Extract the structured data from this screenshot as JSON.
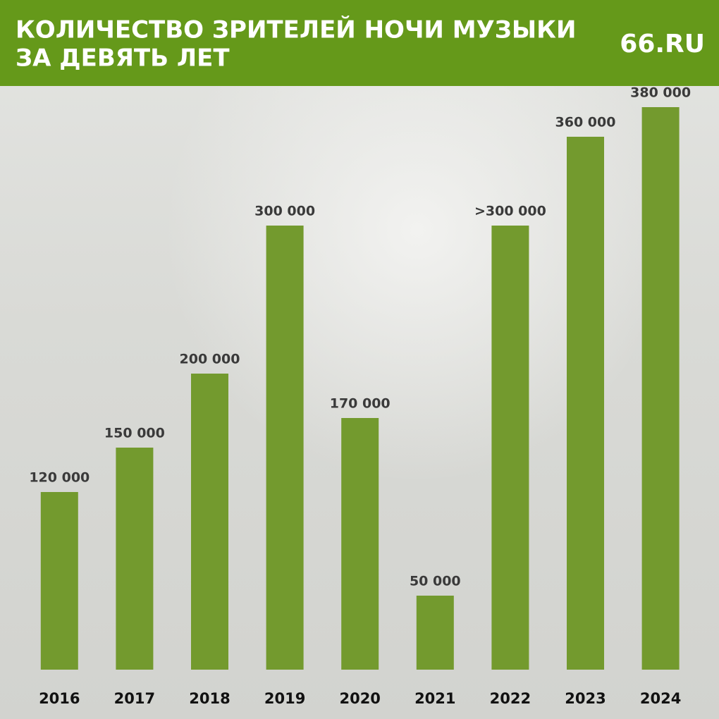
{
  "chart_data": {
    "type": "bar",
    "title_lines": [
      "КОЛИЧЕСТВО ЗРИТЕЛЕЙ НОЧИ МУЗЫКИ",
      "ЗА ДЕВЯТЬ ЛЕТ"
    ],
    "logo": "66.RU",
    "categories": [
      "2016",
      "2017",
      "2018",
      "2019",
      "2020",
      "2021",
      "2022",
      "2023",
      "2024"
    ],
    "values": [
      120000,
      150000,
      200000,
      300000,
      170000,
      50000,
      300000,
      360000,
      380000
    ],
    "value_labels": [
      "120 000",
      "150 000",
      "200 000",
      "300 000",
      "170 000",
      "50 000",
      ">300 000",
      "360 000",
      "380 000"
    ],
    "color": "#739a2e"
  }
}
